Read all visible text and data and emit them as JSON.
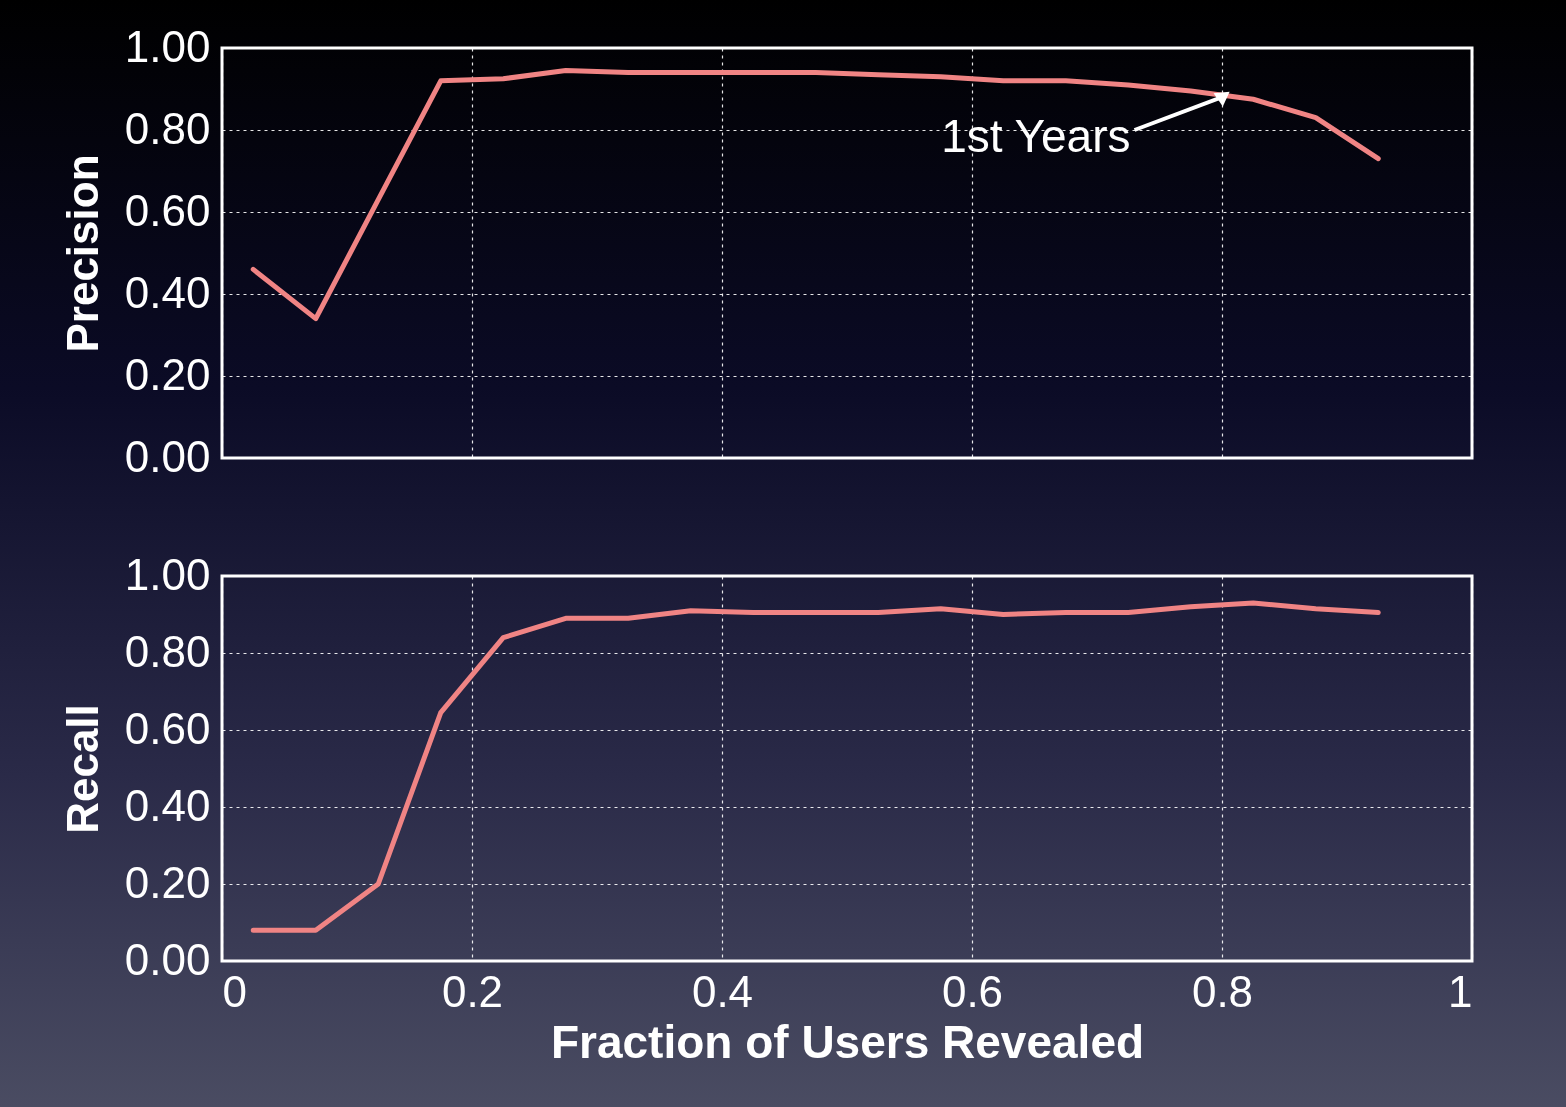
{
  "chart_data": [
    {
      "type": "line",
      "ylabel": "Precision",
      "x": [
        0.025,
        0.075,
        0.125,
        0.175,
        0.225,
        0.275,
        0.325,
        0.375,
        0.425,
        0.475,
        0.525,
        0.575,
        0.625,
        0.675,
        0.725,
        0.775,
        0.825,
        0.875,
        0.925
      ],
      "series": [
        {
          "color": "#f08484",
          "values": [
            0.46,
            0.34,
            0.63,
            0.92,
            0.925,
            0.945,
            0.94,
            0.94,
            0.94,
            0.94,
            0.935,
            0.93,
            0.92,
            0.92,
            0.91,
            0.895,
            0.875,
            0.83,
            0.73
          ]
        }
      ],
      "xlim": [
        0,
        1
      ],
      "xticks": [
        0,
        0.2,
        0.4,
        0.6,
        0.8,
        1
      ],
      "ylim": [
        0,
        1
      ],
      "yticks": [
        {
          "value": 0,
          "label": "0.00"
        },
        {
          "value": 0.2,
          "label": "0.20"
        },
        {
          "value": 0.4,
          "label": "0.40"
        },
        {
          "value": 0.6,
          "label": "0.60"
        },
        {
          "value": 0.8,
          "label": "0.80"
        },
        {
          "value": 1,
          "label": "1.00"
        }
      ],
      "grid": true,
      "tick_labels": "y",
      "annotations": [
        {
          "text": "1st Years",
          "x": 0.8,
          "y": 0.88
        }
      ]
    },
    {
      "type": "line",
      "ylabel": "Recall",
      "xlabel": "Fraction of Users Revealed",
      "x": [
        0.025,
        0.075,
        0.125,
        0.175,
        0.225,
        0.275,
        0.325,
        0.375,
        0.425,
        0.475,
        0.525,
        0.575,
        0.625,
        0.675,
        0.725,
        0.775,
        0.825,
        0.875,
        0.925
      ],
      "series": [
        {
          "color": "#f08484",
          "values": [
            0.08,
            0.08,
            0.2,
            0.645,
            0.84,
            0.89,
            0.89,
            0.91,
            0.905,
            0.905,
            0.905,
            0.915,
            0.9,
            0.905,
            0.905,
            0.92,
            0.93,
            0.915,
            0.905
          ]
        }
      ],
      "xlim": [
        0,
        1
      ],
      "xticks": [
        0,
        0.2,
        0.4,
        0.6,
        0.8,
        1
      ],
      "ylim": [
        0,
        1
      ],
      "yticks": [
        {
          "value": 0,
          "label": "0.00"
        },
        {
          "value": 0.2,
          "label": "0.20"
        },
        {
          "value": 0.4,
          "label": "0.40"
        },
        {
          "value": 0.6,
          "label": "0.60"
        },
        {
          "value": 0.8,
          "label": "0.80"
        },
        {
          "value": 1,
          "label": "1.00"
        }
      ],
      "grid": true
    }
  ]
}
